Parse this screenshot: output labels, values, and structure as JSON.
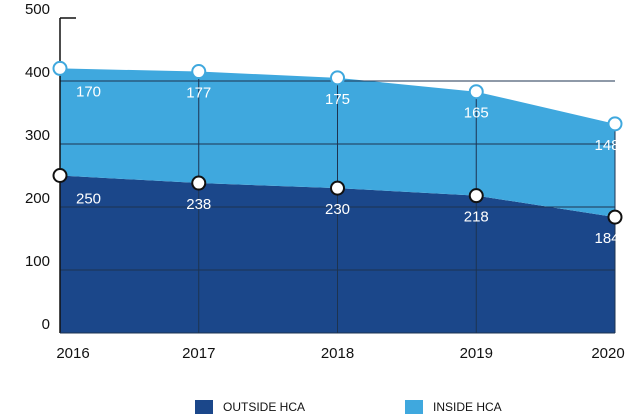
{
  "chart_data": {
    "type": "stacked_area",
    "categories": [
      "2016",
      "2017",
      "2018",
      "2019",
      "2020"
    ],
    "series": [
      {
        "name": "OUTSIDE HCA",
        "color": "#1b478a",
        "values": [
          250,
          238,
          230,
          218,
          184
        ]
      },
      {
        "name": "INSIDE HCA",
        "color": "#3fa8de",
        "values": [
          170,
          177,
          175,
          165,
          148
        ]
      }
    ],
    "ylim": [
      0,
      500
    ],
    "yticks": [
      0,
      100,
      200,
      300,
      400,
      500
    ],
    "grid": true
  }
}
